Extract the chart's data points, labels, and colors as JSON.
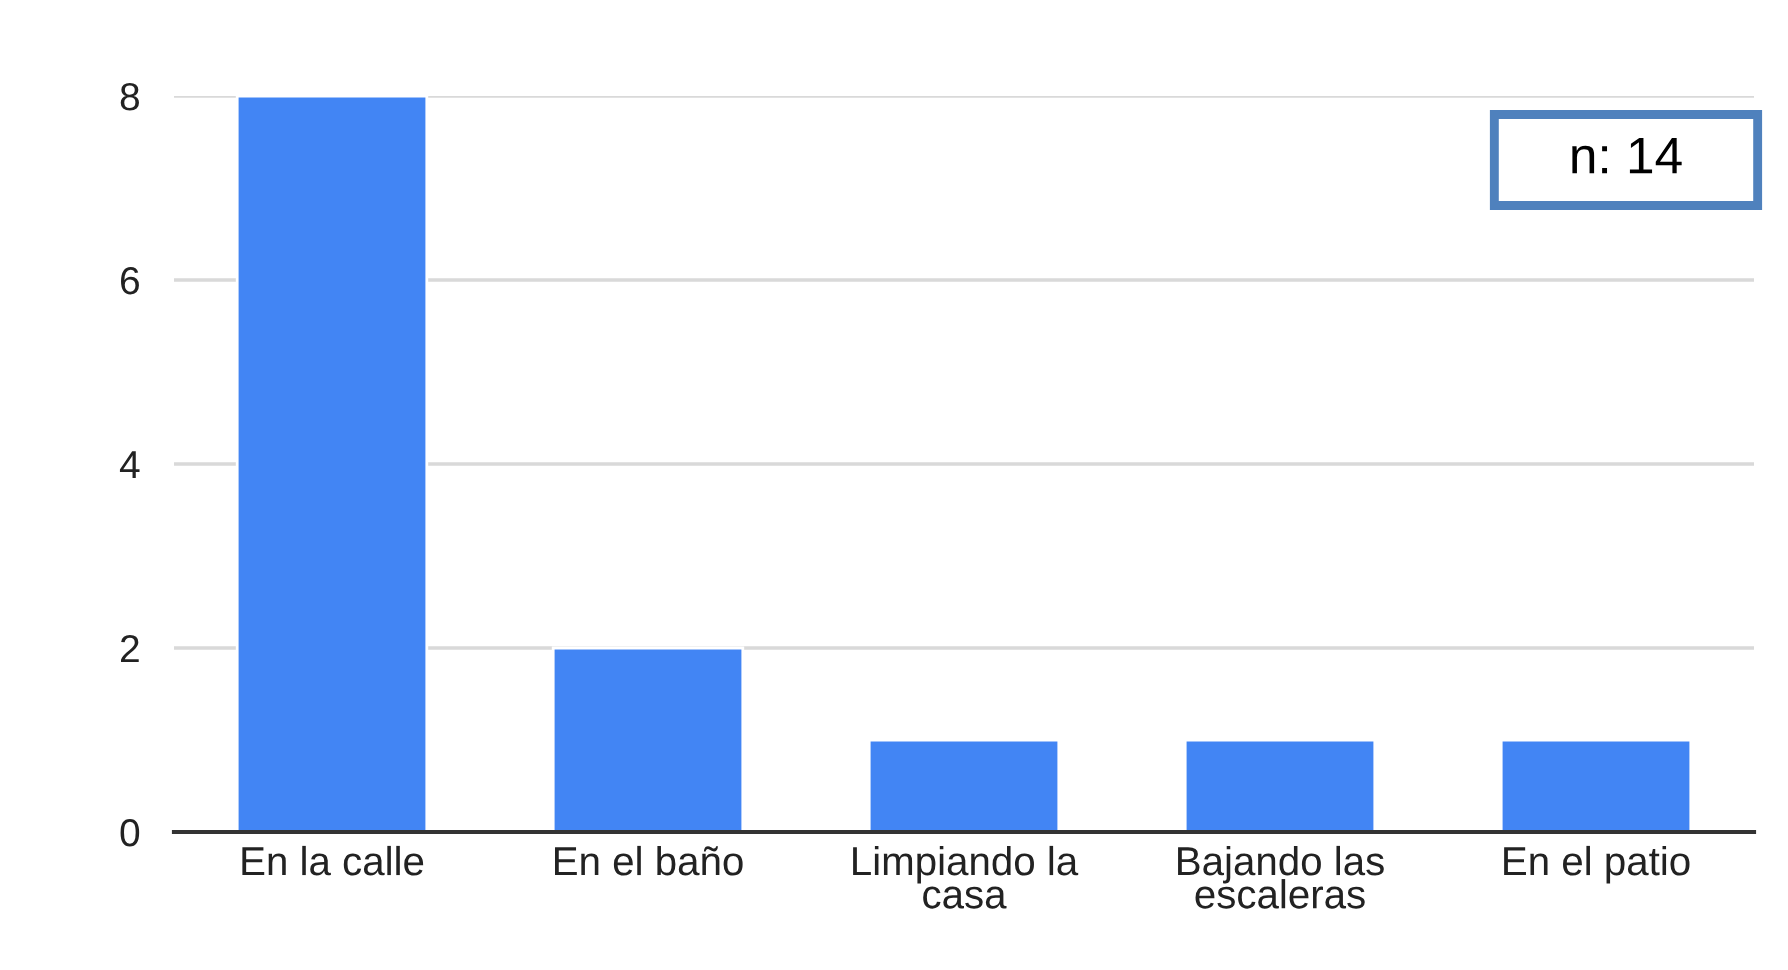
{
  "chart_data": {
    "type": "bar",
    "categories": [
      "En la calle",
      "En el baño",
      "Limpiando la\ncasa",
      "Bajando las\nescaleras",
      "En el patio"
    ],
    "values": [
      8,
      2,
      1,
      1,
      1
    ],
    "color": "#4285f4",
    "ylim": [
      0,
      8
    ],
    "yticks": [
      0,
      2,
      4,
      6,
      8
    ],
    "grid": "y",
    "annotations": [
      "n: 14"
    ]
  }
}
